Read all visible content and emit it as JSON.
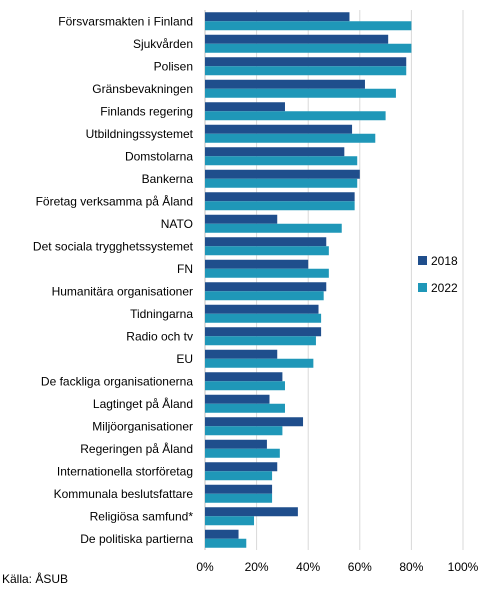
{
  "chart_data": {
    "type": "bar",
    "orientation": "horizontal",
    "categories": [
      "Försvarsmakten i Finland",
      "Sjukvården",
      "Polisen",
      "Gränsbevakningen",
      "Finlands regering",
      "Utbildningssystemet",
      "Domstolarna",
      "Bankerna",
      "Företag verksamma på Åland",
      "NATO",
      "Det sociala trygghetssystemet",
      "FN",
      "Humanitära organisationer",
      "Tidningarna",
      "Radio och tv",
      "EU",
      "De fackliga organisationerna",
      "Lagtinget på Åland",
      "Miljöorganisationer",
      "Regeringen på Åland",
      "Internationella storföretag",
      "Kommunala beslutsfattare",
      "Religiösa samfund*",
      "De politiska partierna"
    ],
    "series": [
      {
        "name": "2018",
        "color": "#1f4e8c",
        "values": [
          56,
          71,
          78,
          62,
          31,
          57,
          54,
          60,
          58,
          28,
          47,
          40,
          47,
          44,
          45,
          28,
          30,
          25,
          38,
          24,
          28,
          26,
          36,
          13
        ]
      },
      {
        "name": "2022",
        "color": "#1f97b8",
        "values": [
          80,
          80,
          78,
          74,
          70,
          66,
          59,
          59,
          58,
          53,
          48,
          48,
          46,
          45,
          43,
          42,
          31,
          31,
          30,
          29,
          26,
          26,
          19,
          16
        ]
      }
    ],
    "x_ticks": [
      "0%",
      "20%",
      "40%",
      "60%",
      "80%",
      "100%"
    ],
    "xlim": [
      0,
      100
    ],
    "grid": "vertical",
    "legend_position": "right"
  },
  "source": "Källa: ÅSUB"
}
